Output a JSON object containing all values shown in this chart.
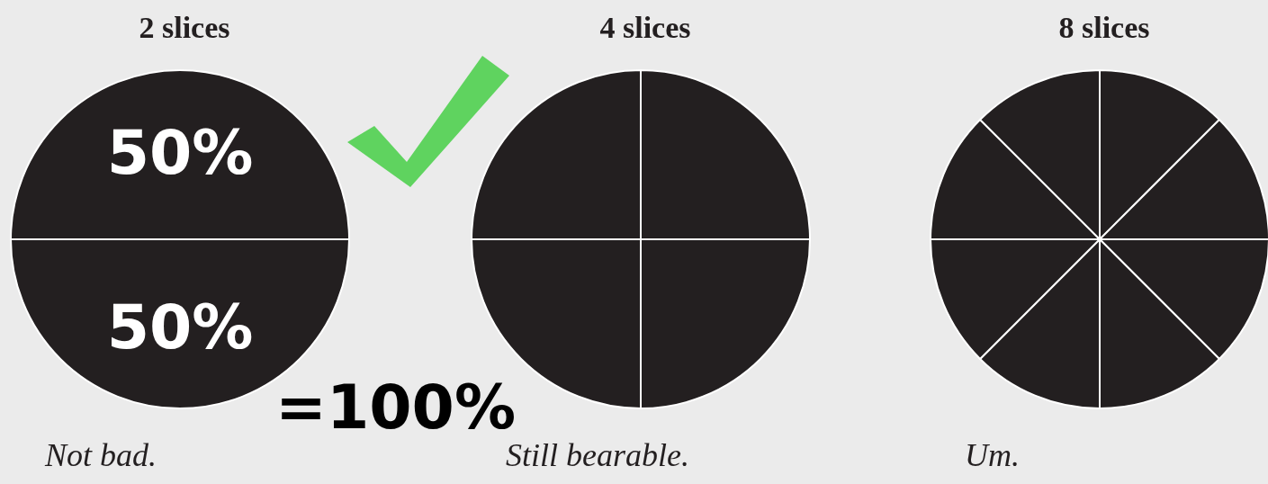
{
  "chart_data": [
    {
      "type": "pie",
      "title": "2 slices",
      "categories": [
        null,
        null
      ],
      "values": [
        50,
        50
      ],
      "value_labels": [
        "50%",
        "50%"
      ],
      "colors": [
        "#231f20",
        "#231f20"
      ],
      "annotations": [
        "=100%",
        "Not bad."
      ]
    },
    {
      "type": "pie",
      "title": "4 slices",
      "categories": [
        null,
        null,
        null,
        null
      ],
      "values": [
        25,
        25,
        25,
        25
      ],
      "colors": [
        "#231f20",
        "#231f20",
        "#231f20",
        "#231f20"
      ],
      "annotations": [
        "Still bearable."
      ]
    },
    {
      "type": "pie",
      "title": "8 slices",
      "categories": [
        null,
        null,
        null,
        null,
        null,
        null,
        null,
        null
      ],
      "values": [
        12.5,
        12.5,
        12.5,
        12.5,
        12.5,
        12.5,
        12.5,
        12.5
      ],
      "colors": [
        "#231f20",
        "#231f20",
        "#231f20",
        "#231f20",
        "#231f20",
        "#231f20",
        "#231f20",
        "#231f20"
      ],
      "annotations": [
        "Um."
      ]
    }
  ]
}
